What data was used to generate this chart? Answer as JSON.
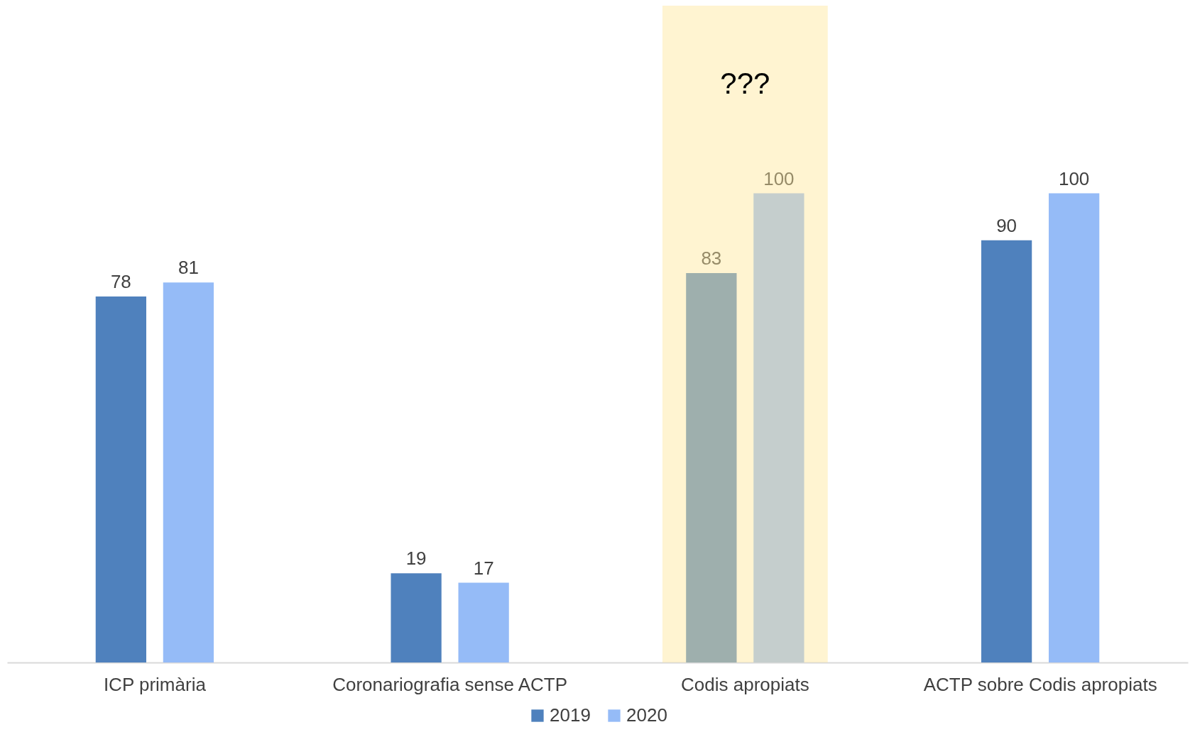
{
  "chart_data": {
    "type": "bar",
    "categories": [
      "ICP primària",
      "Coronariografia sense ACTP",
      "Codis apropiats",
      "ACTP sobre Codis apropiats"
    ],
    "series": [
      {
        "name": "2019",
        "color": "#4f81bd",
        "values": [
          78,
          19,
          83,
          90
        ]
      },
      {
        "name": "2020",
        "color": "#95bbf7",
        "values": [
          81,
          17,
          100,
          100
        ]
      }
    ],
    "data_labels": true,
    "legend": "bottom",
    "grid": false,
    "bands": [
      {
        "axis": "x",
        "from": "Codis apropiats",
        "to": "Codis apropiats",
        "label": "???",
        "color": "#ffe699"
      }
    ]
  }
}
